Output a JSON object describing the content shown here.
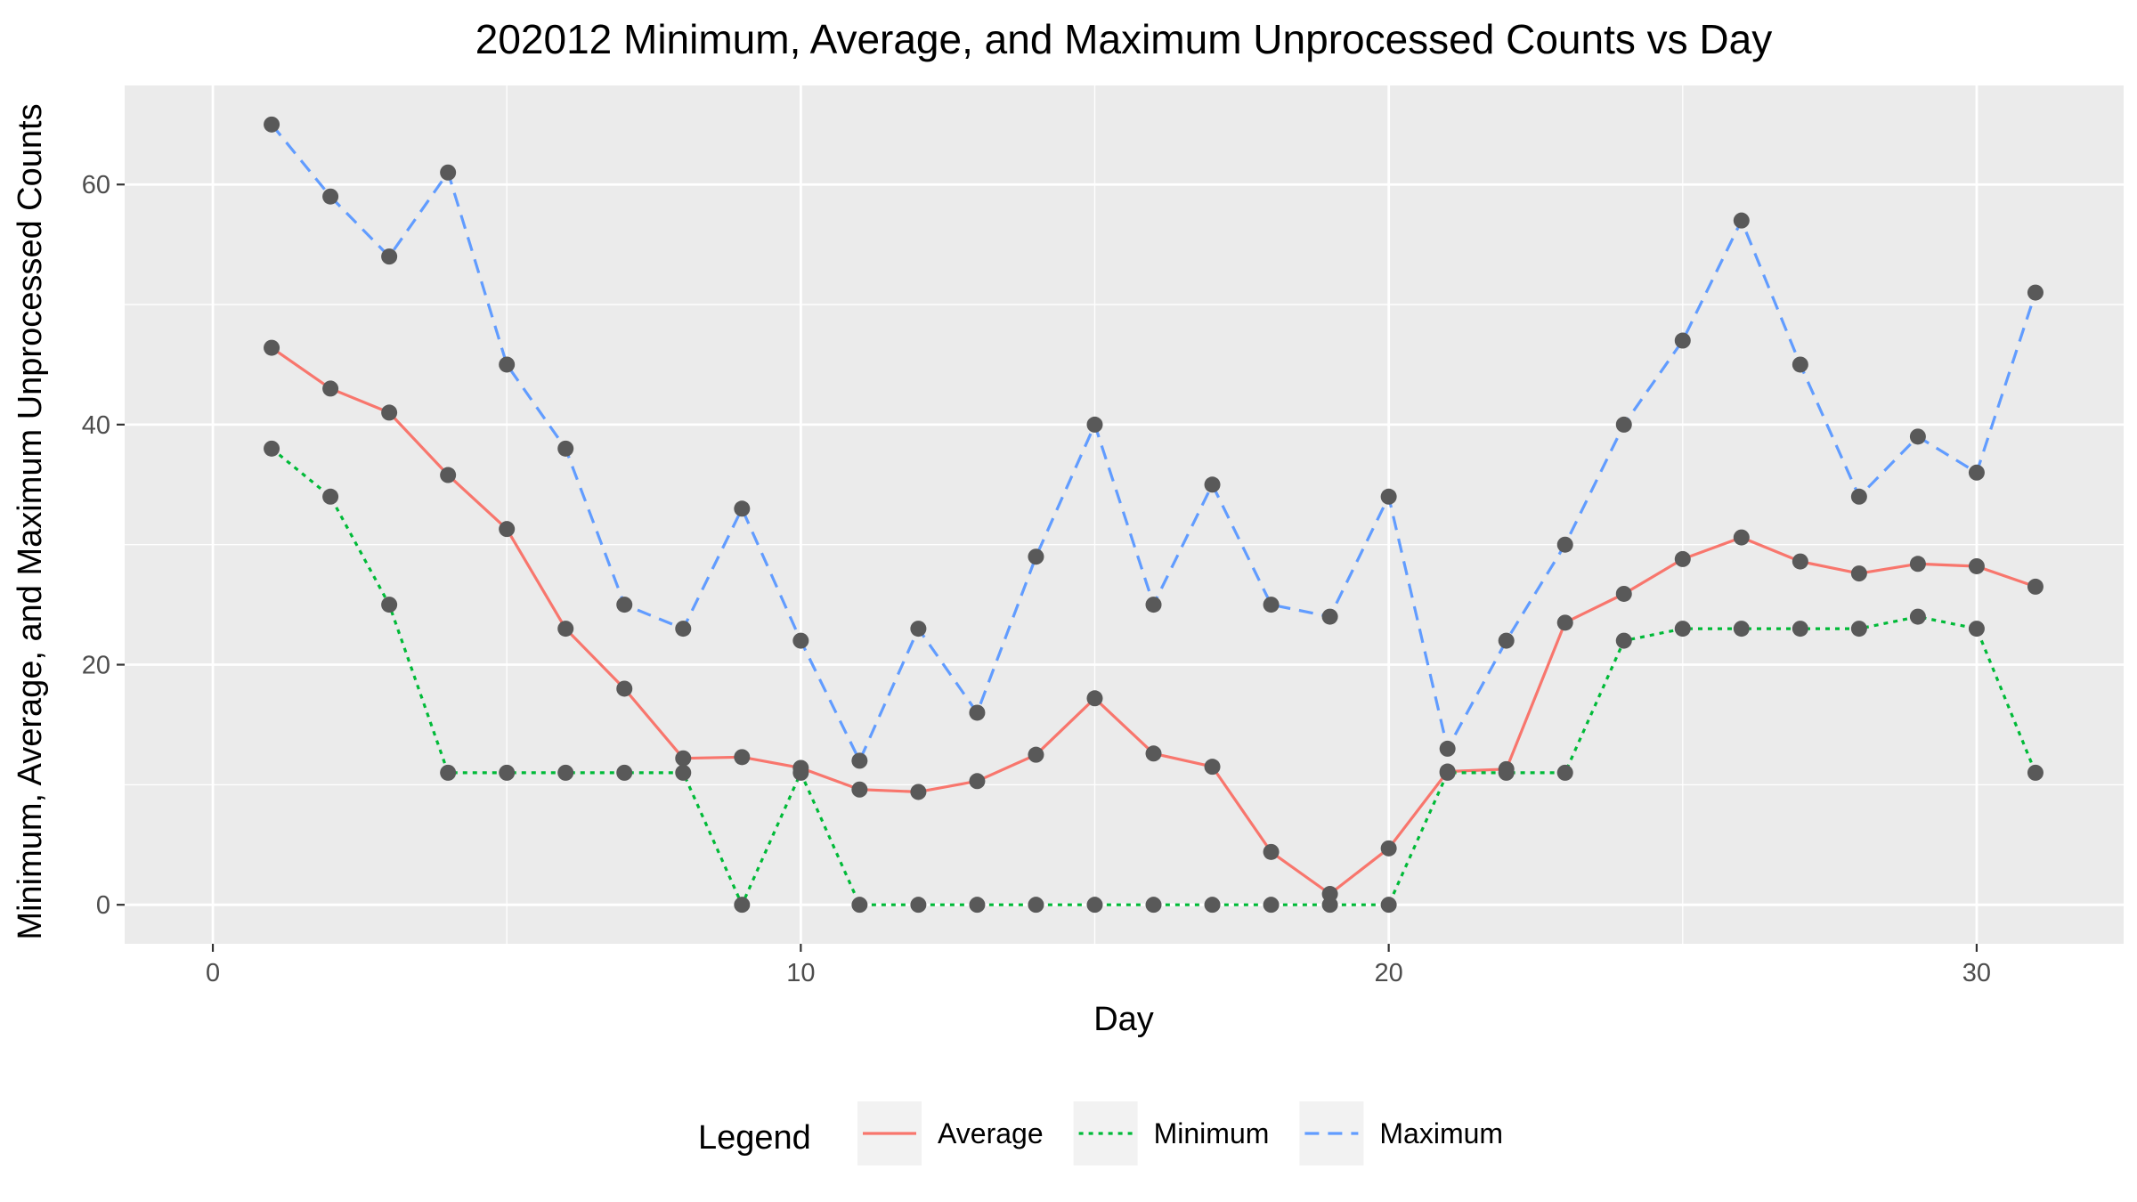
{
  "chart_data": {
    "type": "line",
    "title": "202012 Minimum, Average, and Maximum Unprocessed Counts vs Day",
    "xlabel": "Day",
    "ylabel": "Minimum, Average, and Maximum Unprocessed Counts",
    "xlim": [
      -1.5,
      32.5
    ],
    "ylim": [
      -3.25,
      68.25
    ],
    "x_ticks": [
      0,
      10,
      20,
      30
    ],
    "x_tick_labels": [
      "0",
      "10",
      "20",
      "30"
    ],
    "y_ticks": [
      0,
      20,
      40,
      60
    ],
    "y_tick_labels": [
      "0",
      "20",
      "40",
      "60"
    ],
    "grid": true,
    "legend": {
      "title": "Legend",
      "placement": "bottom",
      "entries": [
        "Average",
        "Minimum",
        "Maximum"
      ]
    },
    "x": [
      1,
      2,
      3,
      4,
      5,
      6,
      7,
      8,
      9,
      10,
      11,
      12,
      13,
      14,
      15,
      16,
      17,
      18,
      19,
      20,
      21,
      22,
      23,
      24,
      25,
      26,
      27,
      28,
      29,
      30,
      31
    ],
    "series": [
      {
        "name": "Average",
        "color": "#F8766D",
        "dash": "solid",
        "values": [
          46.4,
          43,
          41,
          35.8,
          31.3,
          23,
          18,
          12.2,
          12.3,
          11.4,
          9.6,
          9.4,
          10.3,
          12.5,
          17.2,
          12.6,
          11.5,
          4.4,
          0.9,
          4.7,
          11.1,
          11.3,
          23.5,
          25.9,
          28.8,
          30.6,
          28.6,
          27.6,
          28.4,
          28.2,
          26.5
        ]
      },
      {
        "name": "Minimum",
        "color": "#00BA38",
        "dash": "dotted",
        "values": [
          38,
          34,
          25,
          11,
          11,
          11,
          11,
          11,
          0,
          11,
          0,
          0,
          0,
          0,
          0,
          0,
          0,
          0,
          0,
          0,
          11,
          11,
          11,
          22,
          23,
          23,
          23,
          23,
          24,
          23,
          11
        ]
      },
      {
        "name": "Maximum",
        "color": "#619CFF",
        "dash": "dashed",
        "values": [
          65,
          59,
          54,
          61,
          45,
          38,
          25,
          23,
          33,
          22,
          12,
          23,
          16,
          29,
          40,
          25,
          35,
          25,
          24,
          34,
          13,
          22,
          30,
          40,
          47,
          57,
          45,
          34,
          39,
          36,
          51
        ]
      }
    ],
    "point_color": "#595959",
    "panel_background": "#EBEBEB",
    "legend_key_background": "#F2F2F2"
  }
}
